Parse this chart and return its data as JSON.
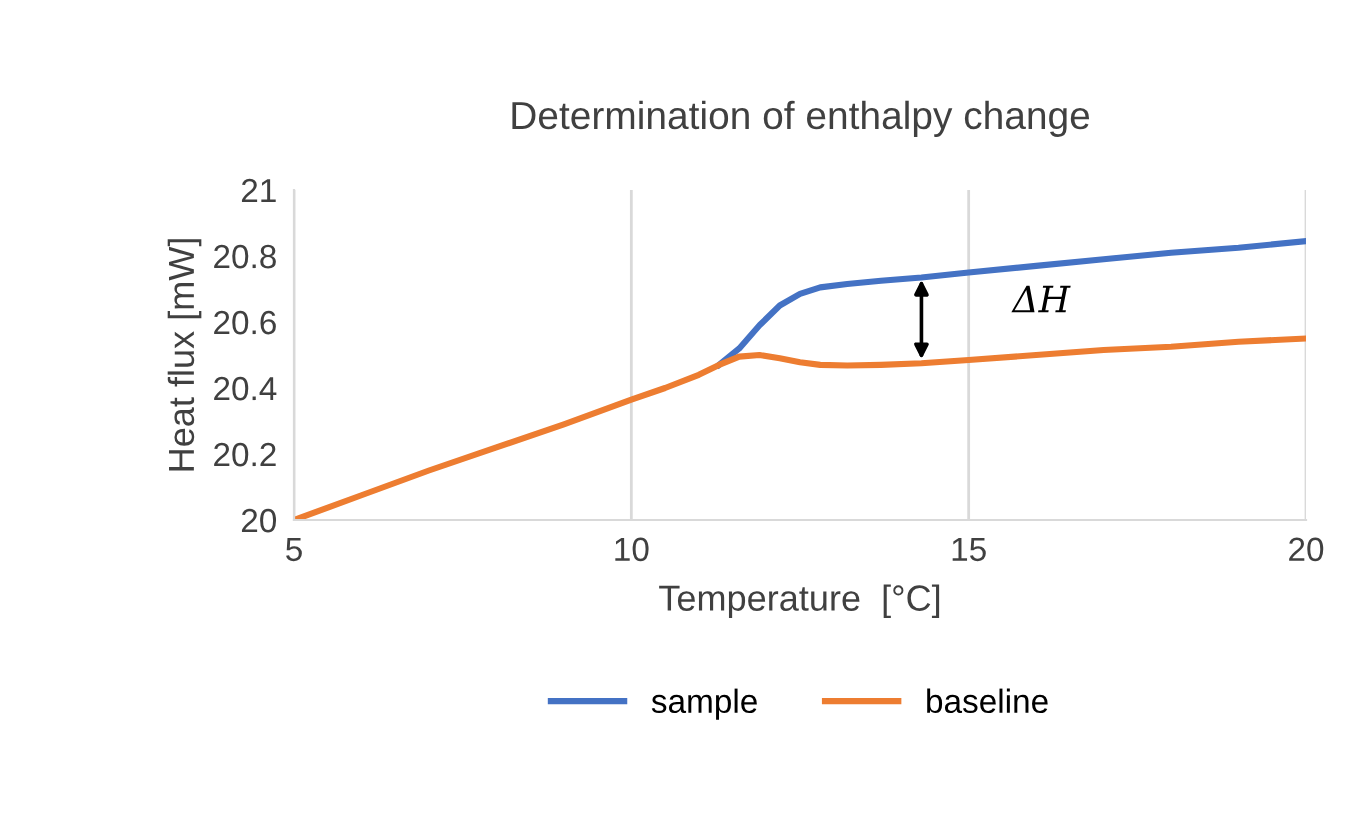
{
  "chart_data": {
    "type": "line",
    "title": "Determination of enthalpy change",
    "xlabel": "Temperature  [°C]",
    "ylabel": "Heat flux [mW]",
    "xlim": [
      5,
      20
    ],
    "xticks": [
      5,
      10,
      15,
      20
    ],
    "ylim": [
      20,
      21
    ],
    "yticks": [
      20,
      20.2,
      20.4,
      20.6,
      20.8,
      21
    ],
    "grid": "x",
    "legend": "bottom",
    "marker": "none",
    "line_style": "solid",
    "annotations": [
      "ΔH"
    ],
    "series": [
      {
        "name": "sample",
        "color": "#4472c4",
        "x": [
          11.3,
          11.6,
          11.9,
          12.2,
          12.5,
          12.8,
          13.2,
          13.7,
          14.3,
          15,
          16,
          17,
          18,
          19,
          20
        ],
        "values": [
          20.47,
          20.52,
          20.59,
          20.65,
          20.685,
          20.705,
          20.715,
          20.725,
          20.735,
          20.75,
          20.77,
          20.79,
          20.81,
          20.825,
          20.845
        ]
      },
      {
        "name": "baseline",
        "color": "#ed7d31",
        "x": [
          5,
          6,
          7,
          8,
          9,
          10,
          10.5,
          11,
          11.3,
          11.6,
          11.9,
          12.2,
          12.5,
          12.8,
          13.2,
          13.7,
          14.3,
          15,
          16,
          17,
          18,
          19,
          20
        ],
        "values": [
          20,
          20.075,
          20.15,
          20.22,
          20.29,
          20.365,
          20.4,
          20.44,
          20.47,
          20.495,
          20.5,
          20.49,
          20.478,
          20.47,
          20.468,
          20.47,
          20.475,
          20.485,
          20.5,
          20.515,
          20.525,
          20.54,
          20.55
        ]
      }
    ]
  }
}
